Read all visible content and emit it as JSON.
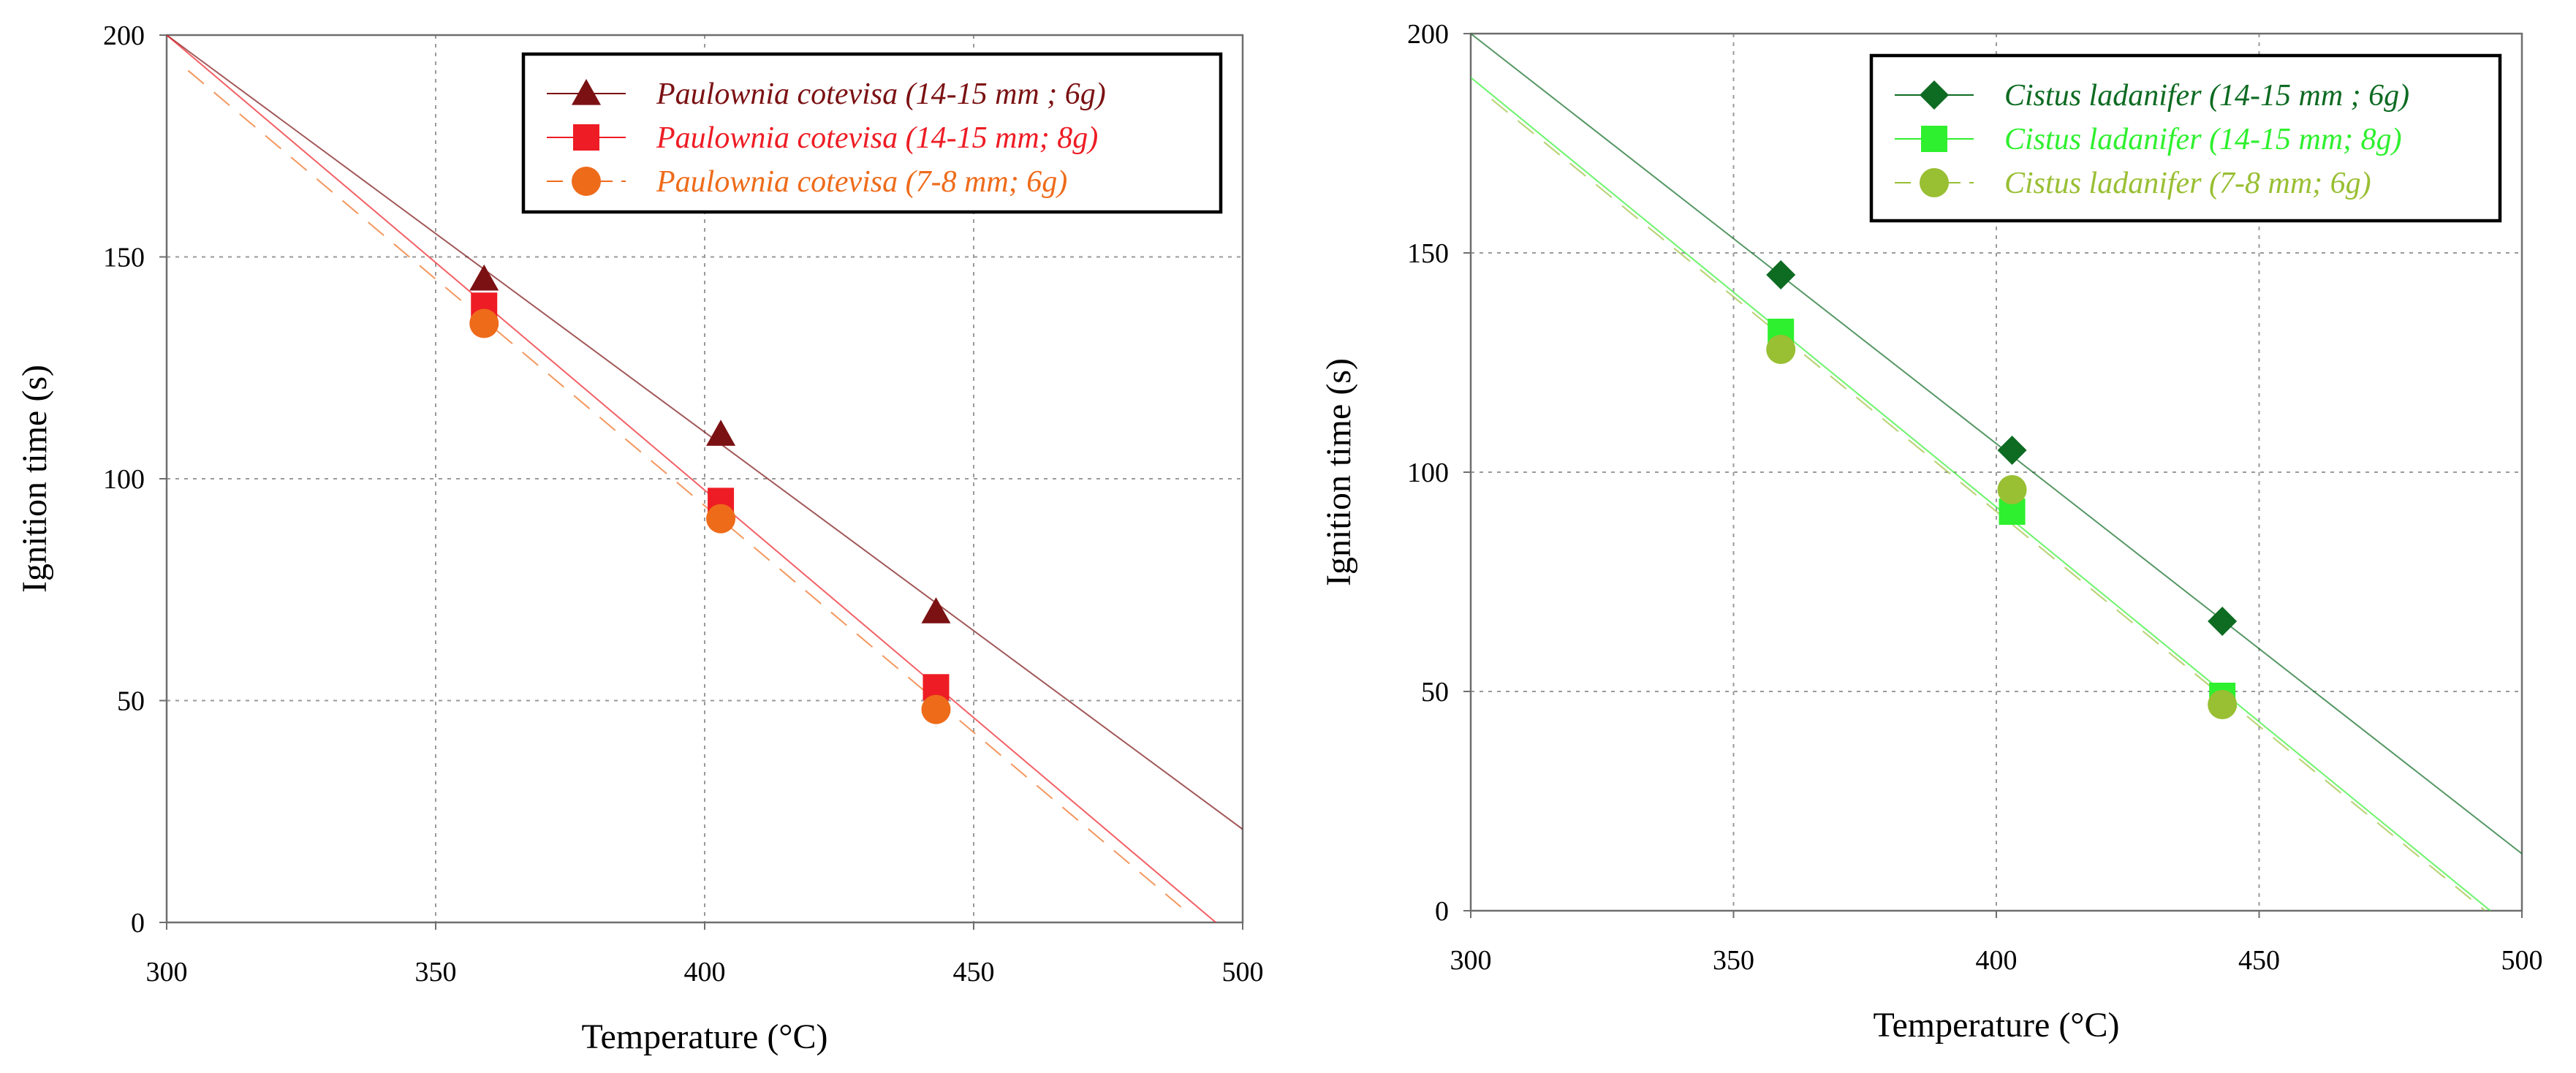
{
  "chart_data": [
    {
      "type": "scatter",
      "title": "",
      "xlabel": "Temperature (°C)",
      "ylabel": "Ignition time (s)",
      "xlim": [
        300,
        500
      ],
      "ylim": [
        0,
        200
      ],
      "xticks": [
        300,
        350,
        400,
        450,
        500
      ],
      "yticks": [
        0,
        50,
        100,
        150,
        200
      ],
      "xtick_labels": [
        "300",
        "350",
        "400",
        "450",
        "500"
      ],
      "ytick_labels": [
        "0",
        "50",
        "100",
        "150",
        "200"
      ],
      "grid": true,
      "legend_position": "top-right",
      "series": [
        {
          "name": "Paulownia cotevisa (14-15 mm ; 6g)",
          "marker": "triangle",
          "color": "#7b1113",
          "line_style": "solid",
          "points": [
            [
              359,
              145
            ],
            [
              403,
              110
            ],
            [
              443,
              70
            ]
          ],
          "trend": [
            [
              300,
              200
            ],
            [
              500,
              21
            ]
          ]
        },
        {
          "name": "Paulownia cotevisa (14-15 mm; 8g)",
          "marker": "square",
          "color": "#ee1c24",
          "line_style": "solid",
          "points": [
            [
              359,
              139
            ],
            [
              403,
              95
            ],
            [
              443,
              53
            ]
          ],
          "trend": [
            [
              300,
              200
            ],
            [
              495,
              0
            ]
          ]
        },
        {
          "name": "Paulownia cotevisa (7-8 mm; 6g)",
          "marker": "circle",
          "color": "#ee6b1a",
          "line_style": "dashed",
          "points": [
            [
              359,
              135
            ],
            [
              403,
              91
            ],
            [
              443,
              48
            ]
          ],
          "trend": [
            [
              304,
              192
            ],
            [
              489,
              3
            ]
          ]
        }
      ]
    },
    {
      "type": "scatter",
      "title": "",
      "xlabel": "Temperature (°C)",
      "ylabel": "Ignition time (s)",
      "xlim": [
        300,
        500
      ],
      "ylim": [
        0,
        200
      ],
      "xticks": [
        300,
        350,
        400,
        450,
        500
      ],
      "yticks": [
        0,
        50,
        100,
        150,
        200
      ],
      "xtick_labels": [
        "300",
        "350",
        "400",
        "450",
        "500"
      ],
      "ytick_labels": [
        "0",
        "50",
        "100",
        "150",
        "200"
      ],
      "grid": true,
      "legend_position": "top-right",
      "series": [
        {
          "name": "Cistus ladanifer (14-15 mm ; 6g)",
          "marker": "diamond",
          "color": "#0d6b22",
          "line_style": "solid",
          "points": [
            [
              359,
              145
            ],
            [
              403,
              105
            ],
            [
              443,
              66
            ]
          ],
          "trend": [
            [
              300,
              200
            ],
            [
              500,
              13
            ]
          ]
        },
        {
          "name": "Cistus ladanifer (14-15 mm; 8g)",
          "marker": "square",
          "color": "#2ef02e",
          "line_style": "solid",
          "points": [
            [
              359,
              132
            ],
            [
              403,
              91
            ],
            [
              443,
              49
            ]
          ],
          "trend": [
            [
              300,
              190
            ],
            [
              494,
              0
            ]
          ]
        },
        {
          "name": "Cistus ladanifer (7-8 mm; 6g)",
          "marker": "circle",
          "color": "#99bf33",
          "line_style": "dashed",
          "points": [
            [
              359,
              128
            ],
            [
              403,
              96
            ],
            [
              443,
              47
            ]
          ],
          "trend": [
            [
              304,
              185
            ],
            [
              493,
              0
            ]
          ]
        }
      ]
    }
  ]
}
